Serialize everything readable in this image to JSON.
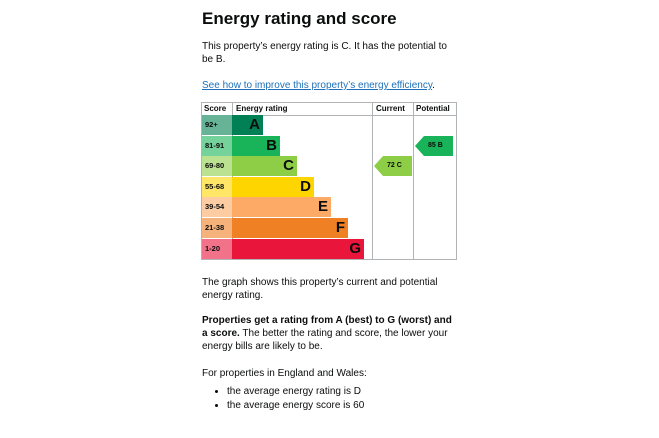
{
  "heading": "Energy rating and score",
  "intro": "This property’s energy rating is C. It has the potential to be B.",
  "improve_link": "See how to improve this property’s energy efficiency",
  "improve_link_suffix": ".",
  "chart": {
    "headers": {
      "score": "Score",
      "rating": "Energy rating",
      "current": "Current",
      "potential": "Potential"
    },
    "bands": [
      {
        "range": "92+",
        "letter": "A",
        "color": "#008054",
        "score_bg": "#66b398"
      },
      {
        "range": "81-91",
        "letter": "B",
        "color": "#19b459",
        "score_bg": "#75d29b"
      },
      {
        "range": "69-80",
        "letter": "C",
        "color": "#8dce46",
        "score_bg": "#bbe290"
      },
      {
        "range": "55-68",
        "letter": "D",
        "color": "#ffd500",
        "score_bg": "#ffe666"
      },
      {
        "range": "39-54",
        "letter": "E",
        "color": "#fcaa65",
        "score_bg": "#fdcca3"
      },
      {
        "range": "21-38",
        "letter": "F",
        "color": "#ef8023",
        "score_bg": "#f5b37b"
      },
      {
        "range": "1-20",
        "letter": "G",
        "color": "#e9153b",
        "score_bg": "#f27389"
      }
    ],
    "current": {
      "label": "72 C",
      "score": 72,
      "rating": "C",
      "color": "#8dce46"
    },
    "potential": {
      "label": "85 B",
      "score": 85,
      "rating": "B",
      "color": "#19b459"
    }
  },
  "graph_caption": "The graph shows this property’s current and potential energy rating.",
  "ratings_bold": "Properties get a rating from A (best) to G (worst) and a score.",
  "ratings_rest": " The better the rating and score, the lower your energy bills are likely to be.",
  "region_intro": "For properties in England and Wales:",
  "bullets": [
    "the average energy rating is D",
    "the average energy score is 60"
  ]
}
